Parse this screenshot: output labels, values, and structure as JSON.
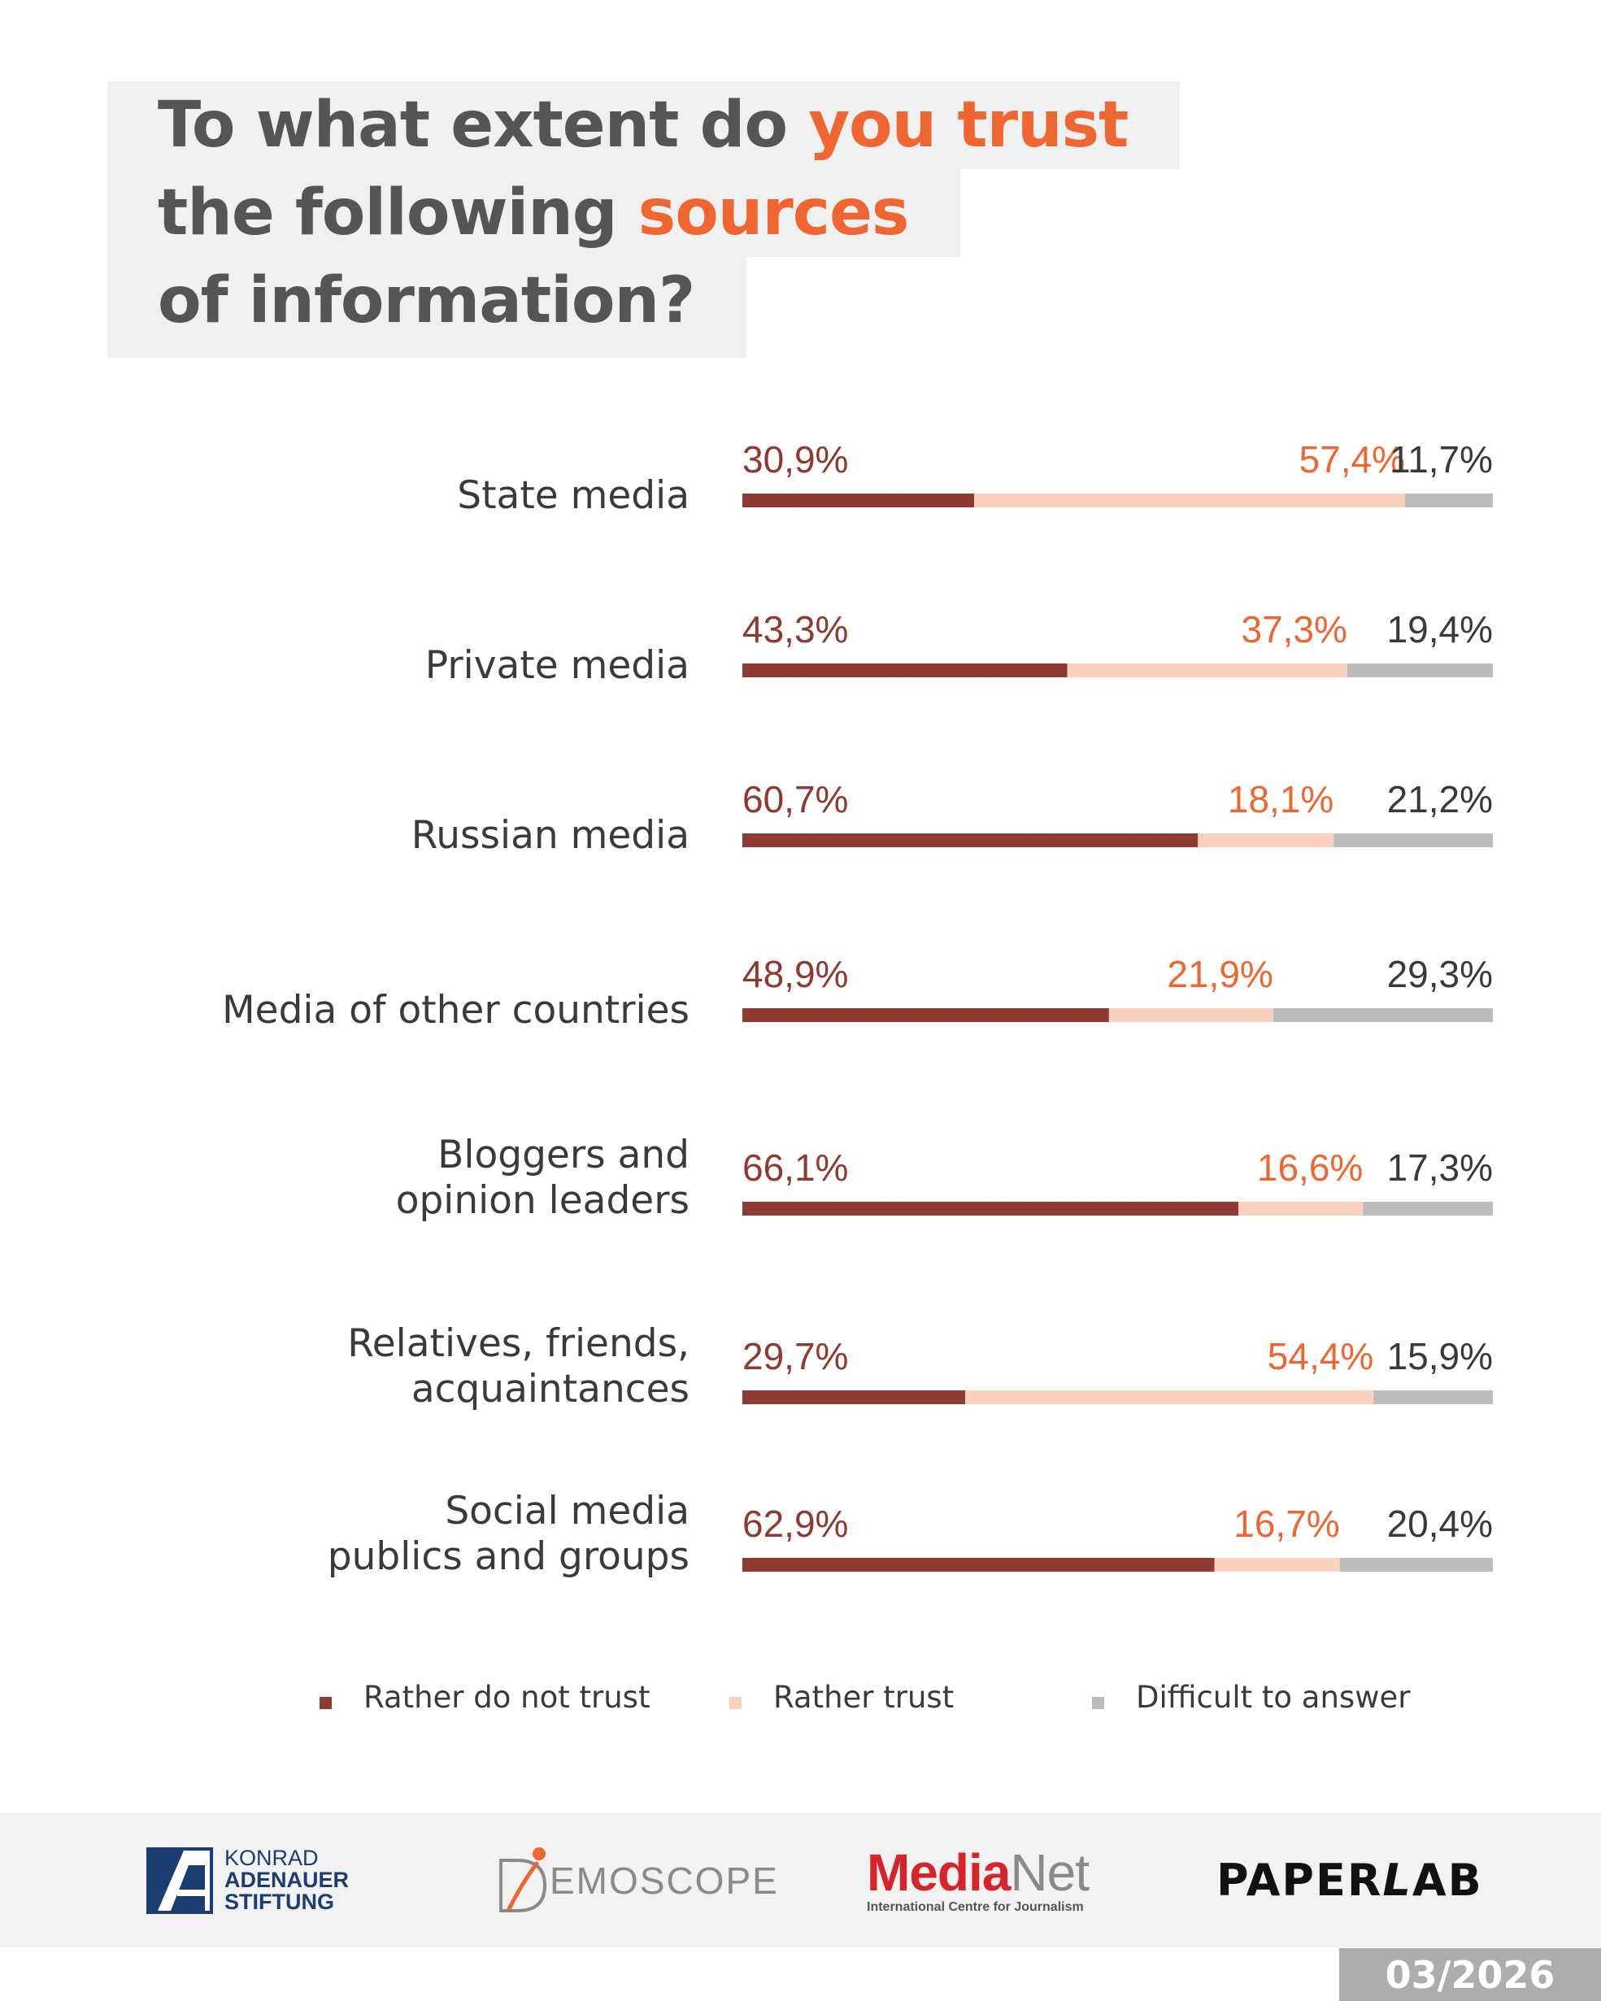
{
  "title": {
    "line1_a": "To what extent do ",
    "line1_b": "you trust",
    "line2_a": "the following ",
    "line2_b": "sources",
    "line3": "of information?"
  },
  "colors": {
    "not_trust": "#8e3a30",
    "trust": "#fbd2bf",
    "difficult": "#bcbcbc",
    "not_trust_label": "#8e3a30",
    "trust_label": "#ef6632",
    "difficult_label": "#3a3a3a",
    "accent": "#ef6632"
  },
  "chart_data": {
    "type": "bar",
    "orientation": "horizontal-stacked-100",
    "title": "To what extent do you trust the following sources of information?",
    "categories": [
      [
        "State media"
      ],
      [
        "Private media"
      ],
      [
        "Russian media"
      ],
      [
        "Media of other countries"
      ],
      [
        "Bloggers and",
        "opinion leaders"
      ],
      [
        "Relatives, friends,",
        "acquaintances"
      ],
      [
        "Social media",
        "publics and groups"
      ]
    ],
    "series": [
      {
        "name": "Rather do not trust",
        "key": "not_trust",
        "values": [
          30.9,
          43.3,
          60.7,
          48.9,
          66.1,
          29.7,
          62.9
        ],
        "labels": [
          "30,9%",
          "43,3%",
          "60,7%",
          "48,9%",
          "66,1%",
          "29,7%",
          "62,9%"
        ]
      },
      {
        "name": "Rather trust",
        "key": "trust",
        "values": [
          57.4,
          37.3,
          18.1,
          21.9,
          16.6,
          54.4,
          16.7
        ],
        "labels": [
          "57,4%",
          "37,3%",
          "18,1%",
          "21,9%",
          "16,6%",
          "54,4%",
          "16,7%"
        ]
      },
      {
        "name": "Difficult to answer",
        "key": "difficult",
        "values": [
          11.7,
          19.4,
          21.2,
          29.3,
          17.3,
          15.9,
          20.4
        ],
        "labels": [
          "11,7%",
          "19,4%",
          "21,2%",
          "29,3%",
          "17,3%",
          "15,9%",
          "20,4%"
        ]
      }
    ],
    "xlim": [
      0,
      100
    ],
    "legend": "bottom"
  },
  "footer": {
    "kas": {
      "line1": "KONRAD",
      "line2": "ADENAUER",
      "line3": "STIFTUNG"
    },
    "demoscope": "EMOSCOPE",
    "medianet": {
      "part1": "Media",
      "part2": "Net",
      "subtitle": "International Centre for Journalism"
    },
    "paperlab": {
      "part1": "PAPER",
      "part2": "L",
      "part3": "AB"
    },
    "date": "03/2026"
  }
}
